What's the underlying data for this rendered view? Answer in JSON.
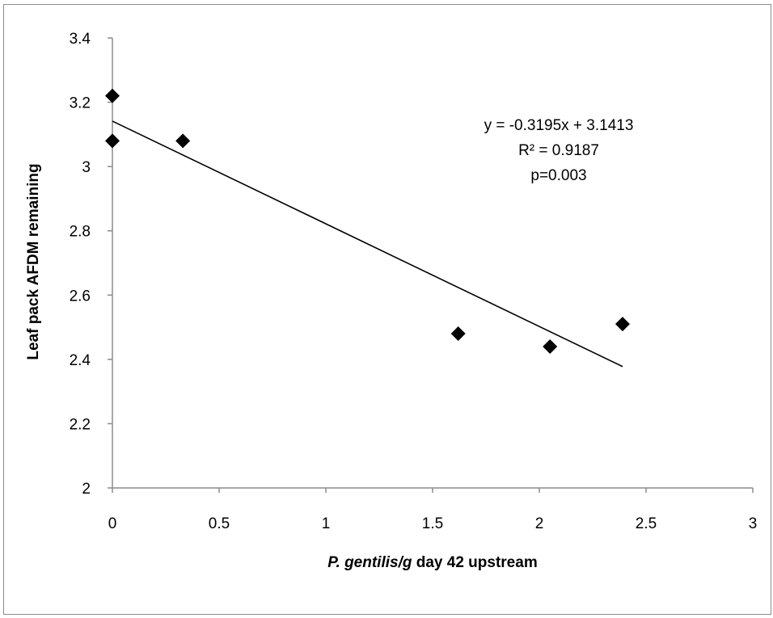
{
  "chart_data": {
    "type": "scatter",
    "title": "",
    "xlabel": "P. gentilis/g day 42 upstream",
    "xlabel_parts": [
      {
        "text": "P. gentilis/g",
        "italic": true
      },
      {
        "text": " day 42 upstream",
        "italic": false
      }
    ],
    "ylabel": "Leaf pack AFDM remaining",
    "xlim": [
      0,
      3
    ],
    "ylim": [
      2,
      3.4
    ],
    "x_ticks": [
      0,
      0.5,
      1,
      1.5,
      2,
      2.5,
      3
    ],
    "x_tick_labels": [
      "0",
      "0.5",
      "1",
      "1.5",
      "2",
      "2.5",
      "3"
    ],
    "y_ticks": [
      2,
      2.2,
      2.4,
      2.6,
      2.8,
      3,
      3.2,
      3.4
    ],
    "y_tick_labels": [
      "2",
      "2.2",
      "2.4",
      "2.6",
      "2.8",
      "3",
      "3.2",
      "3.4"
    ],
    "grid": false,
    "legend": "none",
    "marker": "diamond",
    "marker_color": "#000000",
    "series": [
      {
        "x": [
          0,
          0,
          0.33,
          1.62,
          2.05,
          2.39
        ],
        "y": [
          3.22,
          3.08,
          3.08,
          2.48,
          2.44,
          2.51
        ]
      }
    ],
    "trendline": {
      "type": "linear",
      "slope": -0.3195,
      "intercept": 3.1413,
      "x_range": [
        0,
        2.39
      ],
      "color": "#000000"
    },
    "annotations": [
      "y = -0.3195x + 3.1413",
      "R² = 0.9187",
      "p=0.003"
    ]
  }
}
